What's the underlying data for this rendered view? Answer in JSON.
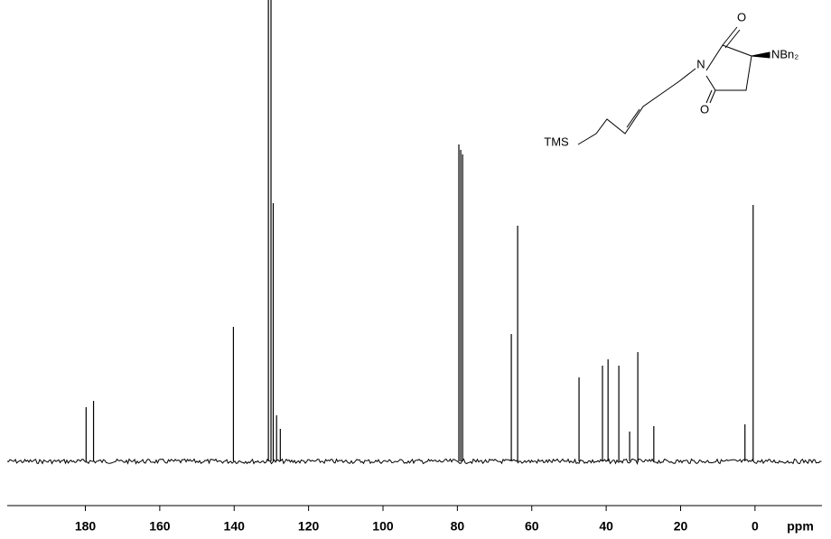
{
  "chart_data": {
    "type": "nmr",
    "x": [
      179.8,
      177.8,
      140.2,
      130.8,
      130.1,
      129.5,
      128.6,
      127.6,
      79.6,
      79.1,
      78.6,
      65.5,
      63.8,
      47.3,
      41.0,
      39.5,
      36.6,
      33.7,
      31.5,
      27.2,
      2.7,
      0.5
    ],
    "values": [
      60,
      67,
      149,
      700,
      700,
      286,
      51,
      36,
      351,
      345,
      340,
      141,
      261,
      93,
      106,
      113,
      106,
      33,
      121,
      39,
      41,
      284
    ],
    "xlim": [
      201,
      -18
    ],
    "ylim": [
      0,
      511
    ],
    "xticks": [
      180,
      160,
      140,
      120,
      100,
      80,
      60,
      40,
      20,
      0
    ],
    "x_label": "ppm",
    "color": "#000000",
    "annotations": [
      "TMS",
      "N",
      "O",
      "O",
      "NBn₂"
    ]
  }
}
